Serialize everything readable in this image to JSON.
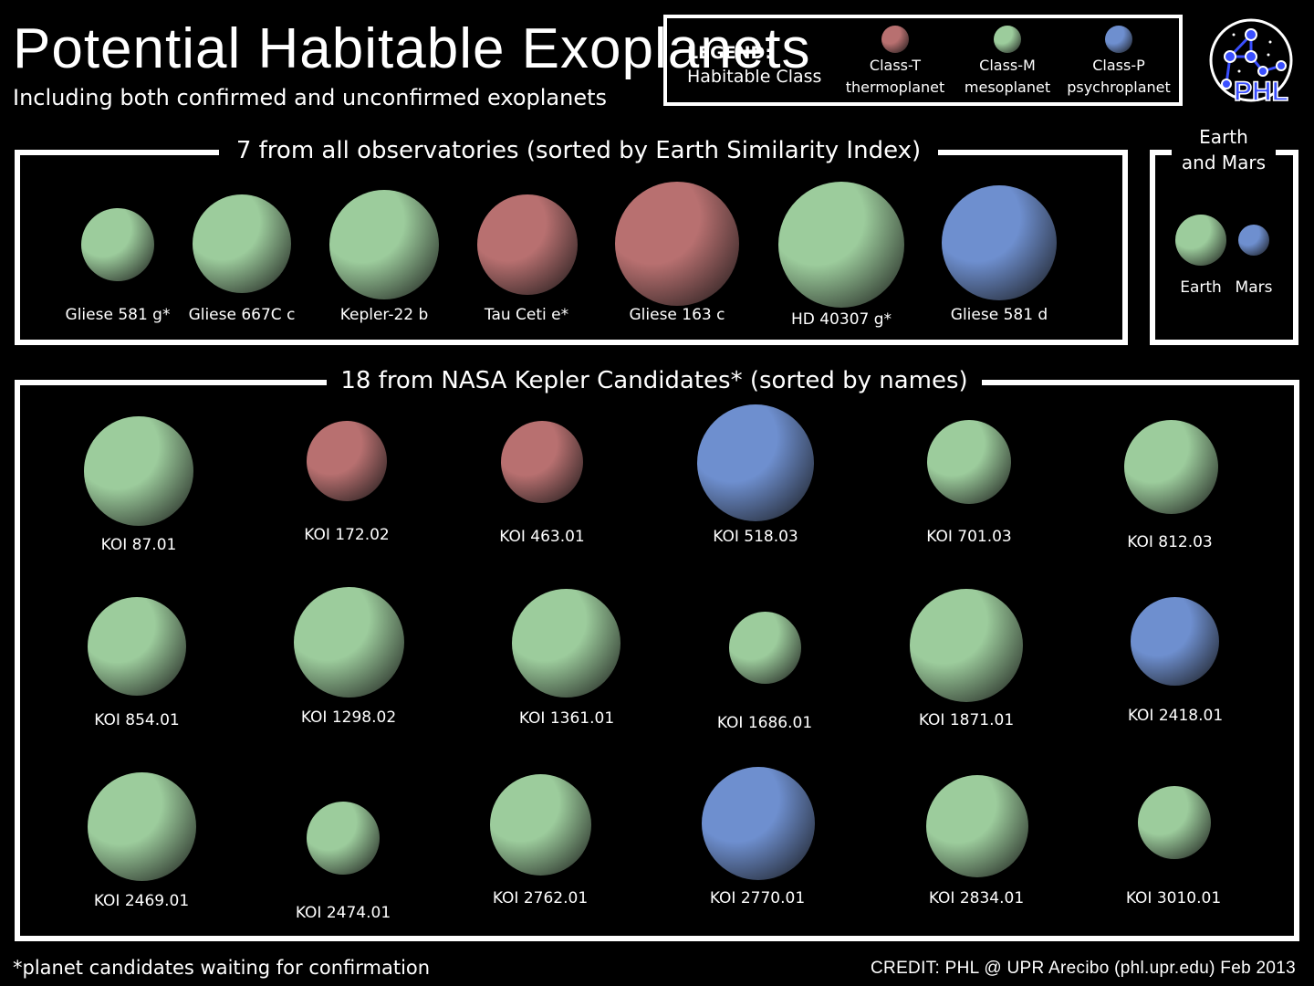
{
  "title": "Potential Habitable Exoplanets",
  "subtitle": "Including both confirmed and unconfirmed exoplanets",
  "colors": {
    "class_t": "#b87070",
    "class_m": "#9ccc9c",
    "class_p": "#6e8fcf",
    "background": "#000000",
    "frame": "#ffffff"
  },
  "legend": {
    "heading": "LEGEND:",
    "subheading": "Habitable Class",
    "items": [
      {
        "cls": "T",
        "line1": "Class-T",
        "line2": "thermoplanet"
      },
      {
        "cls": "M",
        "line1": "Class-M",
        "line2": "mesoplanet"
      },
      {
        "cls": "P",
        "line1": "Class-P",
        "line2": "psychroplanet"
      }
    ]
  },
  "logo": {
    "text": "PHL",
    "icon": "phl-network-logo"
  },
  "observatories": {
    "title": "7 from all observatories (sorted by Earth Similarity Index)",
    "planets": [
      {
        "name": "Gliese 581 g*",
        "cls": "M"
      },
      {
        "name": "Gliese 667C c",
        "cls": "M"
      },
      {
        "name": "Kepler-22 b",
        "cls": "M"
      },
      {
        "name": "Tau Ceti e*",
        "cls": "T"
      },
      {
        "name": "Gliese 163 c",
        "cls": "T"
      },
      {
        "name": "HD 40307 g*",
        "cls": "M"
      },
      {
        "name": "Gliese 581 d",
        "cls": "P"
      }
    ]
  },
  "reference": {
    "title_line1": "Earth",
    "title_line2": "and Mars",
    "planets": [
      {
        "name": "Earth",
        "cls": "M"
      },
      {
        "name": "Mars",
        "cls": "P"
      }
    ]
  },
  "kepler": {
    "title": "18 from NASA Kepler Candidates* (sorted by names)",
    "planets": [
      {
        "name": "KOI 87.01",
        "cls": "M"
      },
      {
        "name": "KOI 172.02",
        "cls": "T"
      },
      {
        "name": "KOI 463.01",
        "cls": "T"
      },
      {
        "name": "KOI 518.03",
        "cls": "P"
      },
      {
        "name": "KOI 701.03",
        "cls": "M"
      },
      {
        "name": "KOI 812.03",
        "cls": "M"
      },
      {
        "name": "KOI 854.01",
        "cls": "M"
      },
      {
        "name": "KOI 1298.02",
        "cls": "M"
      },
      {
        "name": "KOI 1361.01",
        "cls": "M"
      },
      {
        "name": "KOI 1686.01",
        "cls": "M"
      },
      {
        "name": "KOI 1871.01",
        "cls": "M"
      },
      {
        "name": "KOI 2418.01",
        "cls": "P"
      },
      {
        "name": "KOI 2469.01",
        "cls": "M"
      },
      {
        "name": "KOI 2474.01",
        "cls": "M"
      },
      {
        "name": "KOI 2762.01",
        "cls": "M"
      },
      {
        "name": "KOI 2770.01",
        "cls": "P"
      },
      {
        "name": "KOI 2834.01",
        "cls": "M"
      },
      {
        "name": "KOI 3010.01",
        "cls": "M"
      }
    ]
  },
  "footnote": "*planet candidates waiting for confirmation",
  "credit": "CREDIT: PHL @ UPR Arecibo (phl.upr.edu) Feb 2013"
}
